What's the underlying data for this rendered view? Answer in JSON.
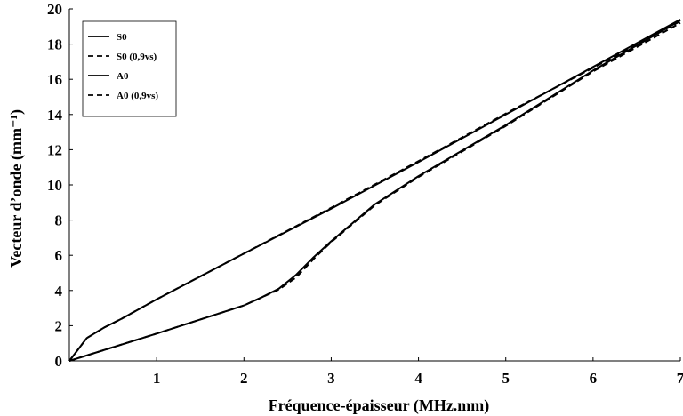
{
  "chart_data": {
    "type": "line",
    "xlabel": "Fréquence-épaisseur (MHz.mm)",
    "ylabel": "Vecteur d’onde (mm⁻¹)",
    "xlim": [
      0,
      7
    ],
    "ylim": [
      0,
      20
    ],
    "xticks": [
      "1",
      "2",
      "3",
      "4",
      "5",
      "6",
      "7"
    ],
    "yticks": [
      "0",
      "2",
      "4",
      "6",
      "8",
      "10",
      "12",
      "14",
      "16",
      "18",
      "20"
    ],
    "grid": false,
    "legend_position": "top-left",
    "series": [
      {
        "name": "S0",
        "style": "solid",
        "color": "#000000",
        "x": [
          0,
          1,
          2,
          2.2,
          2.4,
          2.6,
          2.8,
          3,
          3.5,
          4,
          5,
          6,
          7
        ],
        "y": [
          0,
          1.55,
          3.15,
          3.6,
          4.1,
          4.9,
          5.9,
          6.8,
          8.9,
          10.5,
          13.4,
          16.5,
          19.35
        ]
      },
      {
        "name": "S0 (0,9vs)",
        "style": "dashed",
        "color": "#000000",
        "x": [
          0,
          1,
          2,
          2.2,
          2.4,
          2.6,
          2.8,
          3,
          3.5,
          4,
          5,
          6,
          7
        ],
        "y": [
          0,
          1.55,
          3.15,
          3.6,
          4.05,
          4.75,
          5.8,
          6.75,
          8.85,
          10.45,
          13.35,
          16.45,
          19.2
        ]
      },
      {
        "name": "A0",
        "style": "solid",
        "color": "#000000",
        "x": [
          0,
          0.2,
          0.4,
          0.6,
          1,
          2,
          3,
          4,
          5,
          6,
          7
        ],
        "y": [
          0,
          1.3,
          1.9,
          2.4,
          3.5,
          6.1,
          8.65,
          11.3,
          14,
          16.7,
          19.4
        ]
      },
      {
        "name": "A0 (0,9vs)",
        "style": "dashed",
        "color": "#000000",
        "x": [
          0,
          0.2,
          0.4,
          0.6,
          1,
          2,
          3,
          4,
          5,
          6,
          7
        ],
        "y": [
          0,
          1.3,
          1.9,
          2.4,
          3.5,
          6.1,
          8.7,
          11.35,
          14.05,
          16.65,
          19.3
        ]
      }
    ]
  }
}
